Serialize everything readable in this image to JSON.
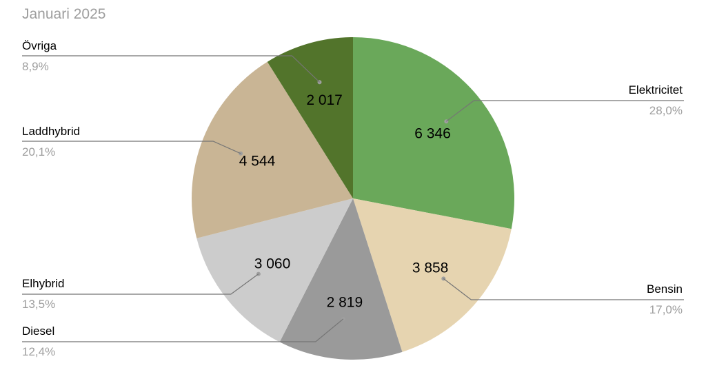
{
  "chart_data": {
    "type": "pie",
    "title": "Januari 2025",
    "slices": [
      {
        "name": "Elektricitet",
        "value": 6346,
        "value_label": "6 346",
        "percent_label": "28,0%",
        "color": "#6aa85a"
      },
      {
        "name": "Bensin",
        "value": 3858,
        "value_label": "3 858",
        "percent_label": "17,0%",
        "color": "#e6d4b0"
      },
      {
        "name": "Diesel",
        "value": 2819,
        "value_label": "2 819",
        "percent_label": "12,4%",
        "color": "#9a9a9a"
      },
      {
        "name": "Elhybrid",
        "value": 3060,
        "value_label": "3 060",
        "percent_label": "13,5%",
        "color": "#cccccc"
      },
      {
        "name": "Laddhybrid",
        "value": 4544,
        "value_label": "4 544",
        "percent_label": "20,1%",
        "color": "#c9b595"
      },
      {
        "name": "Övriga",
        "value": 2017,
        "value_label": "2 017",
        "percent_label": "8,9%",
        "color": "#52742b"
      }
    ],
    "start_angle_deg": 0,
    "direction": "clockwise",
    "legend": "external-labels"
  }
}
